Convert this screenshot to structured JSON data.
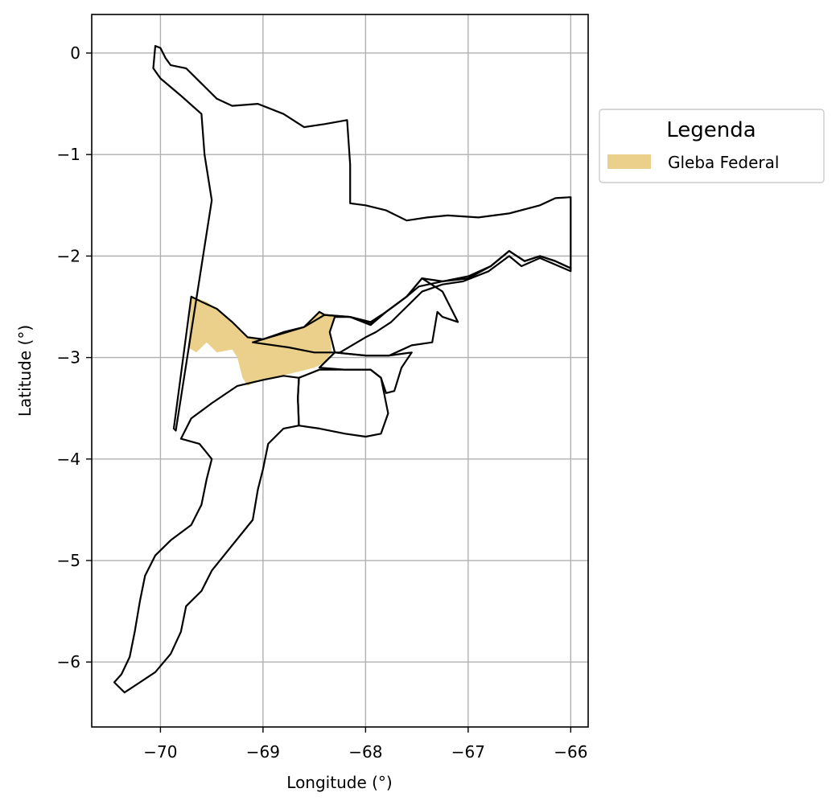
{
  "chart_data": {
    "type": "map",
    "xlabel": "Longitude (°)",
    "ylabel": "Latitude (°)",
    "xlim": [
      -70.67,
      -65.83
    ],
    "ylim": [
      -6.64,
      0.38
    ],
    "x_ticks": [
      -70,
      -69,
      -68,
      -67,
      -66
    ],
    "y_ticks": [
      0,
      -1,
      -2,
      -3,
      -4,
      -5,
      -6
    ],
    "x_tick_labels": [
      "−70",
      "−69",
      "−68",
      "−67",
      "−66"
    ],
    "y_tick_labels": [
      "0",
      "−1",
      "−2",
      "−3",
      "−4",
      "−5",
      "−6"
    ],
    "grid": true,
    "legend": {
      "title": "Legenda",
      "placement": "outside-right-top",
      "entries": [
        {
          "label": "Gleba Federal",
          "color": "#ead08a"
        }
      ]
    },
    "colors": {
      "boundary": "#000000",
      "gleba_federal_fill": "#ead08a",
      "grid": "#b0b0b0"
    },
    "boundaries": [
      {
        "name": "north-municipality",
        "coords": [
          [
            -70.05,
            0.07
          ],
          [
            -70.0,
            0.05
          ],
          [
            -69.95,
            -0.05
          ],
          [
            -69.9,
            -0.12
          ],
          [
            -69.75,
            -0.15
          ],
          [
            -69.6,
            -0.3
          ],
          [
            -69.45,
            -0.45
          ],
          [
            -69.3,
            -0.52
          ],
          [
            -69.05,
            -0.5
          ],
          [
            -68.8,
            -0.6
          ],
          [
            -68.6,
            -0.73
          ],
          [
            -68.4,
            -0.7
          ],
          [
            -68.18,
            -0.66
          ],
          [
            -68.15,
            -1.1
          ],
          [
            -68.15,
            -1.48
          ],
          [
            -68.0,
            -1.5
          ],
          [
            -67.8,
            -1.55
          ],
          [
            -67.6,
            -1.65
          ],
          [
            -67.4,
            -1.62
          ],
          [
            -67.2,
            -1.6
          ],
          [
            -66.9,
            -1.62
          ],
          [
            -66.6,
            -1.58
          ],
          [
            -66.3,
            -1.5
          ],
          [
            -66.15,
            -1.43
          ],
          [
            -66.0,
            -1.42
          ],
          [
            -66.0,
            -2.12
          ],
          [
            -66.15,
            -2.05
          ],
          [
            -66.3,
            -2.0
          ],
          [
            -66.45,
            -2.05
          ],
          [
            -66.6,
            -1.95
          ],
          [
            -66.78,
            -2.1
          ],
          [
            -67.0,
            -2.2
          ],
          [
            -67.25,
            -2.25
          ],
          [
            -67.48,
            -2.3
          ],
          [
            -67.6,
            -2.4
          ],
          [
            -67.8,
            -2.55
          ],
          [
            -67.95,
            -2.65
          ],
          [
            -68.15,
            -2.6
          ],
          [
            -68.4,
            -2.58
          ],
          [
            -68.45,
            -2.55
          ],
          [
            -68.6,
            -2.7
          ],
          [
            -68.8,
            -2.75
          ],
          [
            -69.0,
            -2.82
          ],
          [
            -69.15,
            -2.8
          ],
          [
            -69.3,
            -2.65
          ],
          [
            -69.45,
            -2.52
          ],
          [
            -69.6,
            -2.45
          ],
          [
            -69.7,
            -2.4
          ],
          [
            -69.87,
            -3.7
          ],
          [
            -69.85,
            -3.72
          ],
          [
            -69.5,
            -1.45
          ],
          [
            -69.57,
            -1.0
          ],
          [
            -69.6,
            -0.6
          ],
          [
            -69.8,
            -0.42
          ],
          [
            -70.0,
            -0.25
          ],
          [
            -70.07,
            -0.15
          ],
          [
            -70.05,
            0.07
          ]
        ]
      },
      {
        "name": "central-east-municipality",
        "coords": [
          [
            -69.1,
            -2.85
          ],
          [
            -68.8,
            -2.76
          ],
          [
            -68.6,
            -2.7
          ],
          [
            -68.4,
            -2.58
          ],
          [
            -68.15,
            -2.6
          ],
          [
            -67.95,
            -2.68
          ],
          [
            -67.8,
            -2.55
          ],
          [
            -67.6,
            -2.4
          ],
          [
            -67.45,
            -2.22
          ],
          [
            -67.25,
            -2.25
          ],
          [
            -67.0,
            -2.22
          ],
          [
            -66.78,
            -2.1
          ],
          [
            -66.6,
            -1.95
          ],
          [
            -66.45,
            -2.05
          ],
          [
            -66.3,
            -2.0
          ],
          [
            -66.15,
            -2.05
          ],
          [
            -66.0,
            -2.12
          ],
          [
            -66.0,
            -2.15
          ],
          [
            -66.3,
            -2.02
          ],
          [
            -66.48,
            -2.1
          ],
          [
            -66.6,
            -2.0
          ],
          [
            -66.8,
            -2.15
          ],
          [
            -67.05,
            -2.25
          ],
          [
            -67.25,
            -2.28
          ],
          [
            -67.45,
            -2.35
          ],
          [
            -67.6,
            -2.5
          ],
          [
            -67.75,
            -2.65
          ],
          [
            -67.9,
            -2.75
          ],
          [
            -68.0,
            -2.8
          ],
          [
            -68.25,
            -2.95
          ],
          [
            -68.5,
            -2.95
          ],
          [
            -68.75,
            -2.9
          ],
          [
            -69.1,
            -2.85
          ]
        ]
      },
      {
        "name": "east-inner-municipality",
        "coords": [
          [
            -68.3,
            -2.95
          ],
          [
            -68.0,
            -2.98
          ],
          [
            -67.77,
            -2.98
          ],
          [
            -67.55,
            -2.88
          ],
          [
            -67.35,
            -2.85
          ],
          [
            -67.3,
            -2.55
          ],
          [
            -67.25,
            -2.6
          ],
          [
            -67.1,
            -2.65
          ],
          [
            -67.25,
            -2.35
          ],
          [
            -67.45,
            -2.22
          ],
          [
            -67.6,
            -2.4
          ],
          [
            -67.8,
            -2.55
          ],
          [
            -67.95,
            -2.67
          ],
          [
            -68.15,
            -2.6
          ],
          [
            -68.3,
            -2.6
          ],
          [
            -68.35,
            -2.75
          ],
          [
            -68.3,
            -2.95
          ]
        ]
      },
      {
        "name": "south-east-municipality",
        "coords": [
          [
            -68.45,
            -3.1
          ],
          [
            -68.2,
            -3.12
          ],
          [
            -67.95,
            -3.12
          ],
          [
            -67.85,
            -3.2
          ],
          [
            -67.8,
            -3.35
          ],
          [
            -67.72,
            -3.33
          ],
          [
            -67.65,
            -3.1
          ],
          [
            -67.55,
            -2.95
          ],
          [
            -67.77,
            -2.98
          ],
          [
            -68.0,
            -2.98
          ],
          [
            -68.3,
            -2.95
          ],
          [
            -68.45,
            -3.1
          ]
        ]
      },
      {
        "name": "south-middle-municipality",
        "coords": [
          [
            -68.65,
            -3.2
          ],
          [
            -68.45,
            -3.12
          ],
          [
            -68.2,
            -3.12
          ],
          [
            -67.95,
            -3.12
          ],
          [
            -67.85,
            -3.2
          ],
          [
            -67.78,
            -3.55
          ],
          [
            -67.85,
            -3.75
          ],
          [
            -68.0,
            -3.78
          ],
          [
            -68.2,
            -3.75
          ],
          [
            -68.45,
            -3.7
          ],
          [
            -68.65,
            -3.67
          ],
          [
            -68.66,
            -3.4
          ],
          [
            -68.65,
            -3.2
          ]
        ]
      },
      {
        "name": "south-municipality",
        "coords": [
          [
            -69.25,
            -3.28
          ],
          [
            -69.0,
            -3.22
          ],
          [
            -68.8,
            -3.18
          ],
          [
            -68.65,
            -3.2
          ],
          [
            -68.66,
            -3.4
          ],
          [
            -68.65,
            -3.67
          ],
          [
            -68.8,
            -3.7
          ],
          [
            -68.95,
            -3.85
          ],
          [
            -69.0,
            -4.1
          ],
          [
            -69.05,
            -4.3
          ],
          [
            -69.1,
            -4.6
          ],
          [
            -69.3,
            -4.85
          ],
          [
            -69.5,
            -5.1
          ],
          [
            -69.6,
            -5.3
          ],
          [
            -69.75,
            -5.45
          ],
          [
            -69.8,
            -5.7
          ],
          [
            -69.9,
            -5.92
          ],
          [
            -70.05,
            -6.1
          ],
          [
            -70.2,
            -6.2
          ],
          [
            -70.35,
            -6.3
          ],
          [
            -70.45,
            -6.2
          ],
          [
            -70.38,
            -6.12
          ],
          [
            -70.3,
            -5.95
          ],
          [
            -70.25,
            -5.7
          ],
          [
            -70.2,
            -5.4
          ],
          [
            -70.15,
            -5.15
          ],
          [
            -70.05,
            -4.95
          ],
          [
            -69.9,
            -4.8
          ],
          [
            -69.7,
            -4.65
          ],
          [
            -69.6,
            -4.45
          ],
          [
            -69.55,
            -4.2
          ],
          [
            -69.5,
            -4.0
          ],
          [
            -69.62,
            -3.85
          ],
          [
            -69.8,
            -3.8
          ],
          [
            -69.7,
            -3.6
          ],
          [
            -69.5,
            -3.45
          ],
          [
            -69.25,
            -3.28
          ]
        ]
      }
    ],
    "gleba_federal": {
      "label": "Gleba Federal",
      "coords": [
        [
          -69.7,
          -2.4
        ],
        [
          -69.55,
          -2.45
        ],
        [
          -69.45,
          -2.52
        ],
        [
          -69.3,
          -2.65
        ],
        [
          -69.15,
          -2.8
        ],
        [
          -69.0,
          -2.83
        ],
        [
          -68.8,
          -2.76
        ],
        [
          -68.6,
          -2.7
        ],
        [
          -68.45,
          -2.55
        ],
        [
          -68.3,
          -2.6
        ],
        [
          -68.35,
          -2.75
        ],
        [
          -68.33,
          -2.95
        ],
        [
          -68.4,
          -3.05
        ],
        [
          -68.5,
          -3.1
        ],
        [
          -68.7,
          -3.15
        ],
        [
          -68.9,
          -3.2
        ],
        [
          -69.05,
          -3.22
        ],
        [
          -69.15,
          -3.28
        ],
        [
          -69.2,
          -3.2
        ],
        [
          -69.25,
          -3.0
        ],
        [
          -69.3,
          -2.92
        ],
        [
          -69.45,
          -2.95
        ],
        [
          -69.55,
          -2.85
        ],
        [
          -69.65,
          -2.95
        ],
        [
          -69.73,
          -2.9
        ],
        [
          -69.7,
          -2.4
        ]
      ]
    }
  }
}
